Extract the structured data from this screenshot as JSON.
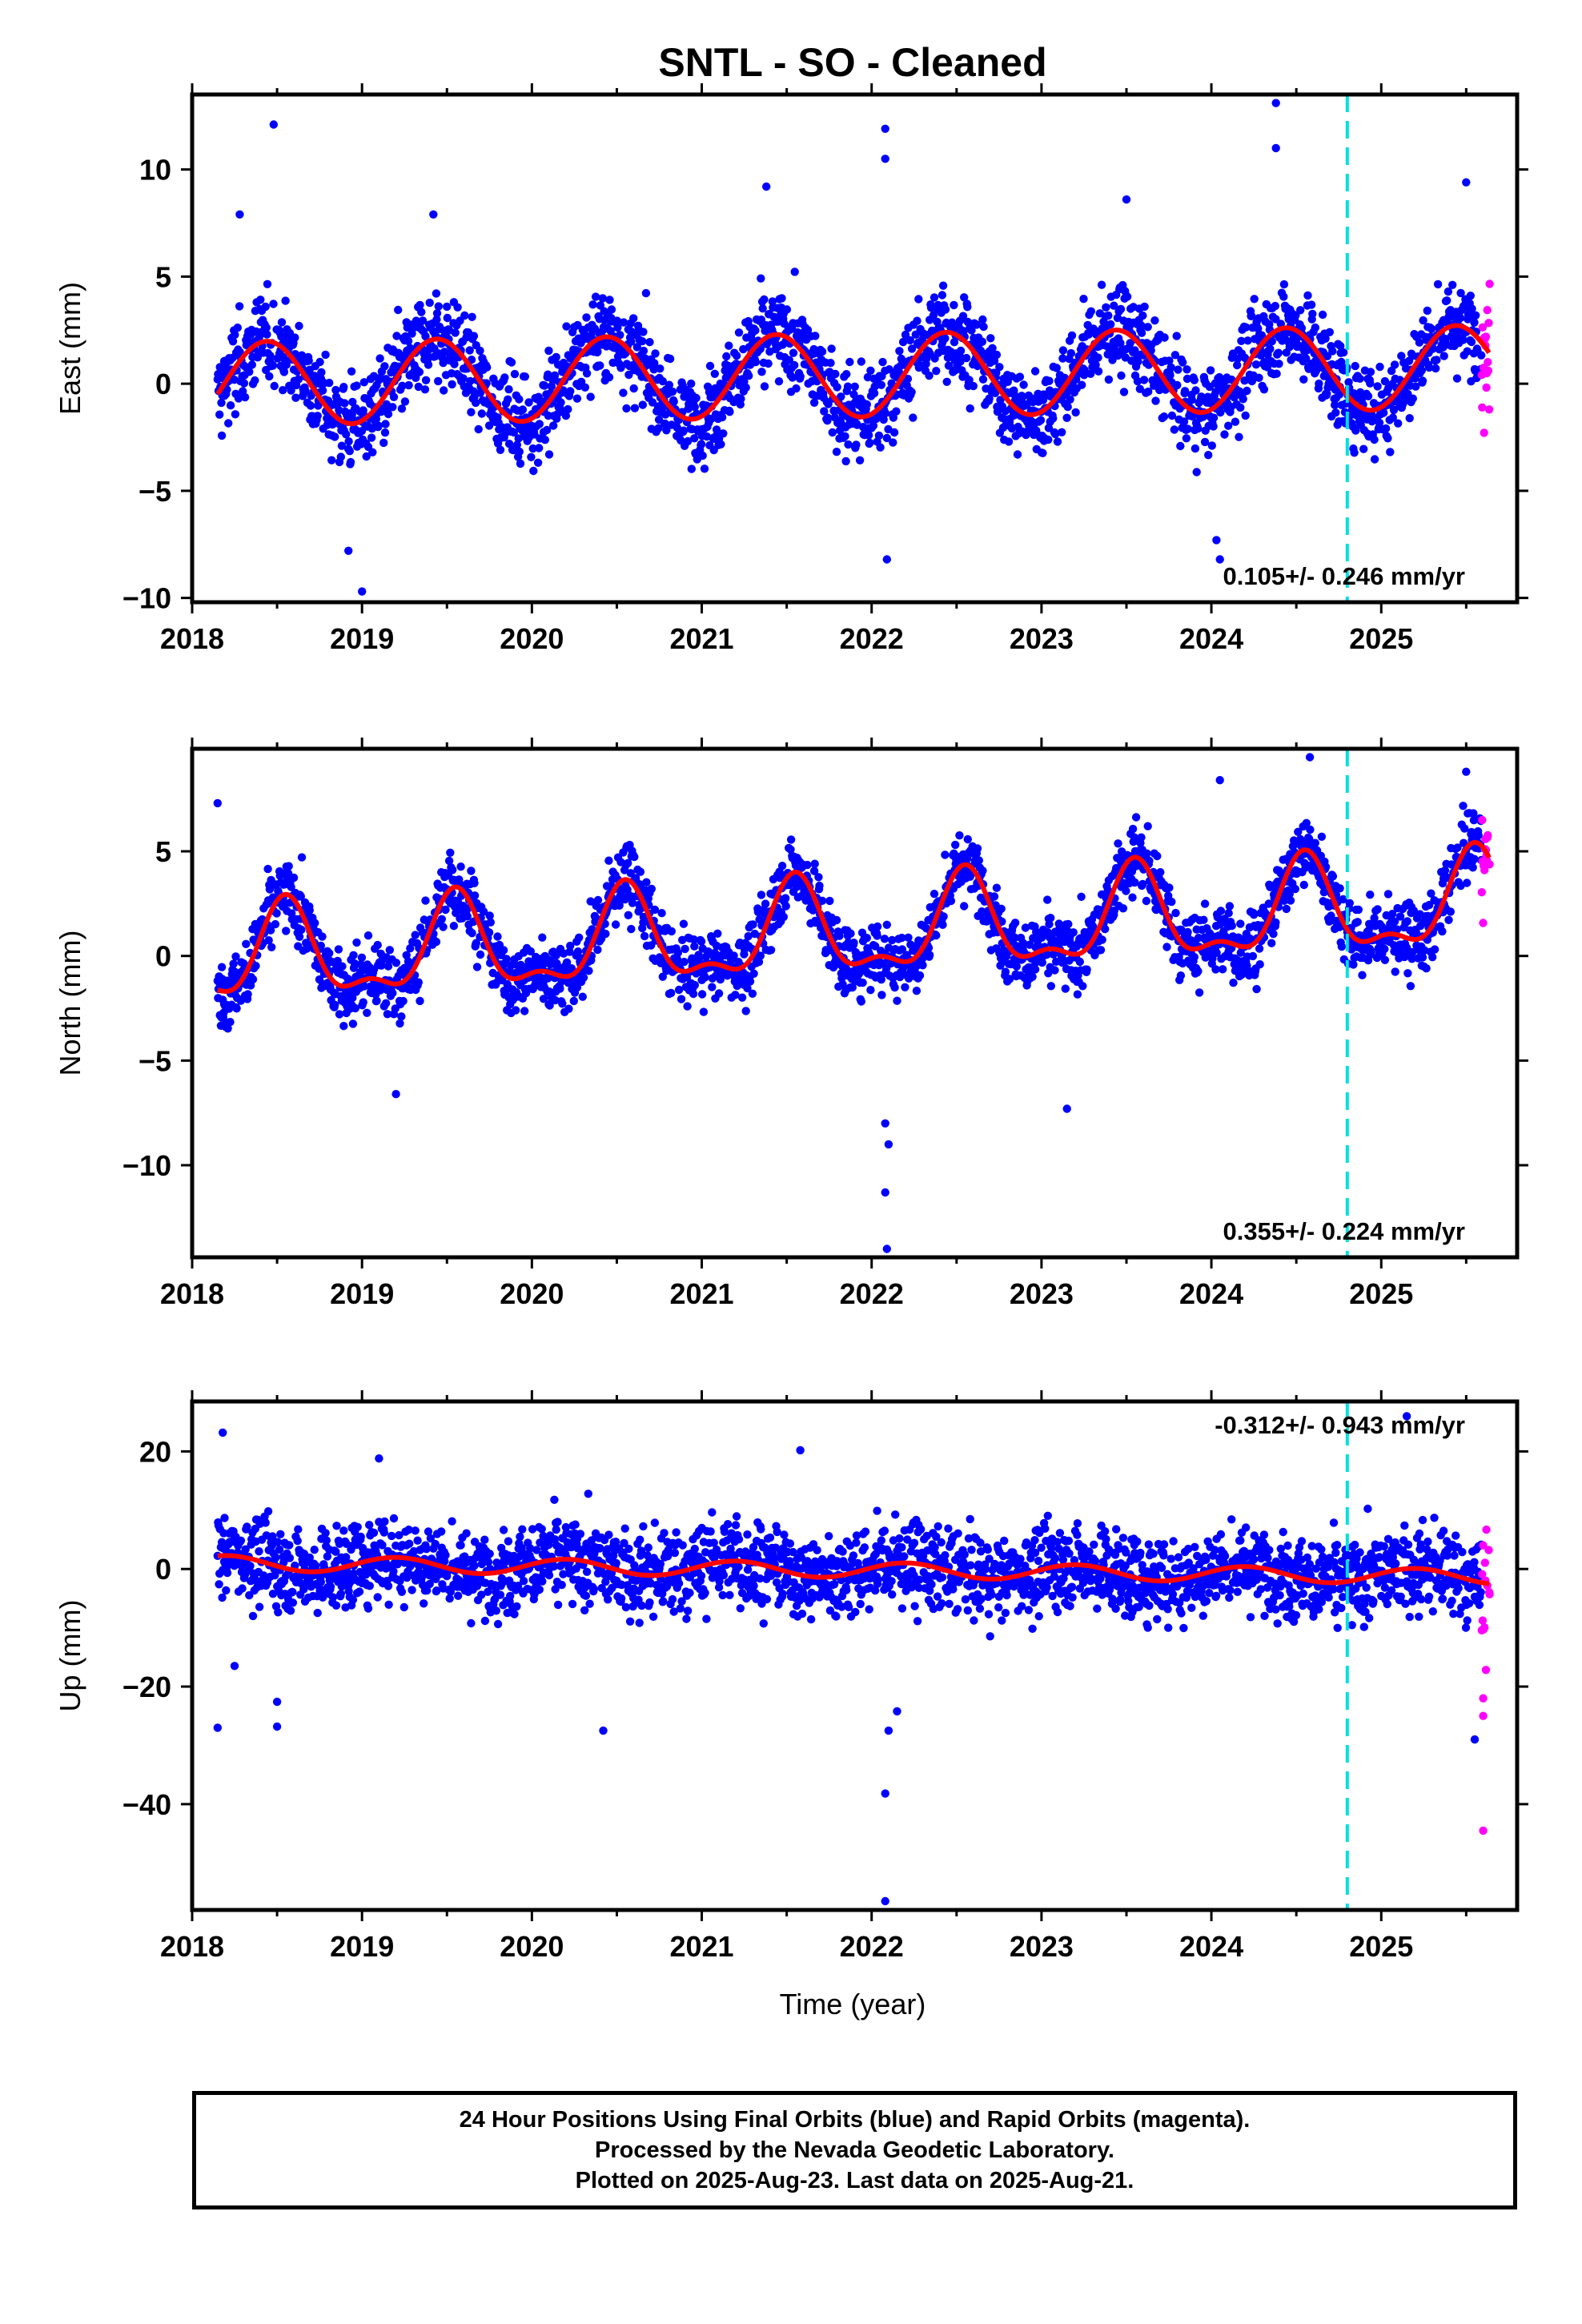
{
  "colors": {
    "final_orbits": "#0000ff",
    "rapid_orbits": "#ff00ff",
    "model_fit": "#ff0000",
    "reference_line": "#00e0e0",
    "frame": "#000000"
  },
  "footer": {
    "lines": [
      "24 Hour Positions Using Final Orbits (blue) and Rapid Orbits (magenta).",
      "Processed by the Nevada Geodetic Laboratory.",
      "Plotted on 2025-Aug-23. Last data on 2025-Aug-21."
    ]
  },
  "chart_data": {
    "type": "scatter",
    "title": "SNTL  - SO - Cleaned",
    "xlabel": "Time (year)",
    "xlim": [
      2018.0,
      2025.8
    ],
    "x_ticks": [
      2018,
      2019,
      2020,
      2021,
      2022,
      2023,
      2024,
      2025
    ],
    "x_tick_labels": [
      "2018",
      "2019",
      "2020",
      "2021",
      "2022",
      "2023",
      "2024",
      "2025"
    ],
    "reference_line_x": 2024.8,
    "data_start": 2018.15,
    "data_end": 2025.64,
    "rapid_start": 2025.59,
    "panels": [
      {
        "name": "East",
        "ylabel": "East (mm)",
        "ylim": [
          -10.2,
          13.5
        ],
        "y_ticks": [
          -10,
          -5,
          0,
          5,
          10
        ],
        "y_tick_labels": [
          "−10",
          "−5",
          "0",
          "5",
          "10"
        ],
        "rate_label": "0.105+/- 0.246 mm/yr",
        "rate_position": "bottom-right",
        "model": {
          "offset": 0.0,
          "trend_per_year": 0.105,
          "annual_amp": 1.95,
          "annual_peak": 0.44,
          "semiannual_amp": 0.0,
          "semiannual_peak": 0.0,
          "noise_sd": 1.5
        },
        "outliers": [
          [
            2018.48,
            12.1
          ],
          [
            2022.08,
            11.9
          ],
          [
            2022.08,
            10.5
          ],
          [
            2024.38,
            13.1
          ],
          [
            2024.38,
            11.0
          ],
          [
            2018.92,
            -7.8
          ],
          [
            2019.0,
            -9.7
          ],
          [
            2022.09,
            -8.2
          ],
          [
            2024.05,
            -8.2
          ],
          [
            2024.03,
            -7.3
          ],
          [
            2025.5,
            9.4
          ],
          [
            2021.38,
            9.2
          ],
          [
            2023.5,
            8.6
          ],
          [
            2019.42,
            7.9
          ],
          [
            2018.28,
            7.9
          ]
        ]
      },
      {
        "name": "North",
        "ylabel": "North (mm)",
        "ylim": [
          -14.4,
          9.9
        ],
        "y_ticks": [
          -10,
          -5,
          0,
          5
        ],
        "y_tick_labels": [
          "−10",
          "−5",
          "0",
          "5"
        ],
        "rate_label": "0.355+/- 0.224 mm/yr",
        "rate_position": "bottom-right",
        "model": {
          "offset": -0.2,
          "trend_per_year": 0.355,
          "annual_amp": 2.1,
          "annual_peak": 0.55,
          "semiannual_amp": 0.9,
          "semiannual_peak": 0.55,
          "noise_sd": 1.2
        },
        "outliers": [
          [
            2022.08,
            -11.3
          ],
          [
            2022.09,
            -14.0
          ],
          [
            2018.15,
            7.3
          ],
          [
            2024.58,
            9.5
          ],
          [
            2025.5,
            8.8
          ],
          [
            2024.05,
            8.4
          ],
          [
            2022.08,
            -8.0
          ],
          [
            2022.1,
            -9.0
          ],
          [
            2023.15,
            -7.3
          ],
          [
            2019.2,
            -6.6
          ]
        ]
      },
      {
        "name": "Up",
        "ylabel": "Up (mm)",
        "ylim": [
          -58.0,
          28.5
        ],
        "y_ticks": [
          -40,
          -20,
          0,
          20
        ],
        "y_tick_labels": [
          "−40",
          "−20",
          "0",
          "20"
        ],
        "rate_label": "-0.312+/- 0.943 mm/yr",
        "rate_position": "top-right",
        "model": {
          "offset": 1.0,
          "trend_per_year": -0.312,
          "annual_amp": 1.3,
          "annual_peak": 0.2,
          "semiannual_amp": 0.0,
          "semiannual_peak": 0.0,
          "noise_sd": 5.2
        },
        "outliers": [
          [
            2018.18,
            23.2
          ],
          [
            2022.08,
            -38.2
          ],
          [
            2022.08,
            -56.5
          ],
          [
            2018.15,
            -27.0
          ],
          [
            2018.5,
            -26.8
          ],
          [
            2018.5,
            -22.6
          ],
          [
            2020.42,
            -27.5
          ],
          [
            2025.55,
            -29.0
          ],
          [
            2025.6,
            -44.5
          ],
          [
            2025.15,
            26.0
          ],
          [
            2021.58,
            20.2
          ],
          [
            2022.1,
            -27.5
          ],
          [
            2022.15,
            -24.2
          ],
          [
            2025.6,
            -25.0
          ],
          [
            2025.6,
            -22.0
          ],
          [
            2018.25,
            -16.5
          ],
          [
            2019.1,
            18.8
          ]
        ]
      }
    ]
  }
}
